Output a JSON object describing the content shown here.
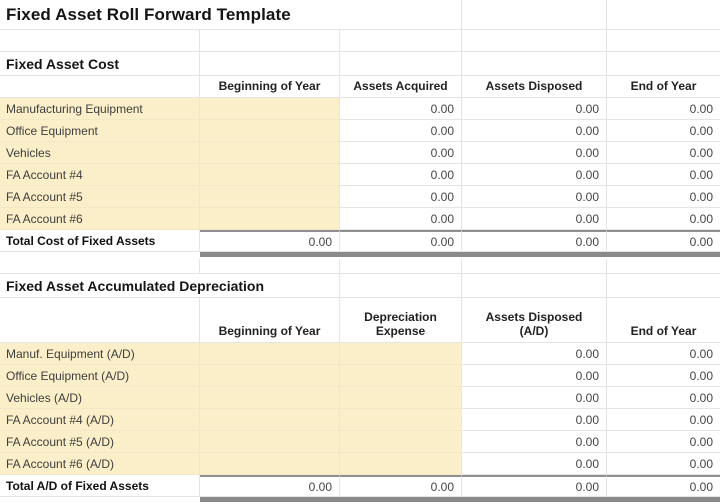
{
  "title": "Fixed Asset Roll Forward Template",
  "sections": [
    {
      "heading": "Fixed Asset Cost",
      "column_headers": [
        "Beginning of Year",
        "Assets Acquired",
        "Assets Disposed",
        "End of Year"
      ],
      "highlighted_value_columns": 1,
      "rows": [
        {
          "label": "Manufacturing Equipment",
          "values": [
            "",
            "0.00",
            "0.00",
            "0.00"
          ]
        },
        {
          "label": "Office Equipment",
          "values": [
            "",
            "0.00",
            "0.00",
            "0.00"
          ]
        },
        {
          "label": "Vehicles",
          "values": [
            "",
            "0.00",
            "0.00",
            "0.00"
          ]
        },
        {
          "label": "FA Account #4",
          "values": [
            "",
            "0.00",
            "0.00",
            "0.00"
          ]
        },
        {
          "label": "FA Account #5",
          "values": [
            "",
            "0.00",
            "0.00",
            "0.00"
          ]
        },
        {
          "label": "FA Account #6",
          "values": [
            "",
            "0.00",
            "0.00",
            "0.00"
          ]
        }
      ],
      "total_row": {
        "label": "Total Cost of Fixed Assets",
        "values": [
          "0.00",
          "0.00",
          "0.00",
          "0.00"
        ]
      }
    },
    {
      "heading": "Fixed Asset Accumulated Depreciation",
      "column_headers": [
        "Beginning of Year",
        "Depreciation\nExpense",
        "Assets Disposed\n(A/D)",
        "End of Year"
      ],
      "highlighted_value_columns": 2,
      "rows": [
        {
          "label": "Manuf. Equipment (A/D)",
          "values": [
            "",
            "",
            "0.00",
            "0.00"
          ]
        },
        {
          "label": "Office Equipment (A/D)",
          "values": [
            "",
            "",
            "0.00",
            "0.00"
          ]
        },
        {
          "label": "Vehicles (A/D)",
          "values": [
            "",
            "",
            "0.00",
            "0.00"
          ]
        },
        {
          "label": "FA Account #4 (A/D)",
          "values": [
            "",
            "",
            "0.00",
            "0.00"
          ]
        },
        {
          "label": "FA Account #5 (A/D)",
          "values": [
            "",
            "",
            "0.00",
            "0.00"
          ]
        },
        {
          "label": "FA Account #6 (A/D)",
          "values": [
            "",
            "",
            "0.00",
            "0.00"
          ]
        }
      ],
      "total_row": {
        "label": "Total A/D of Fixed Assets",
        "values": [
          "0.00",
          "0.00",
          "0.00",
          "0.00"
        ]
      }
    }
  ],
  "colors": {
    "input_highlight": "#FBEFC9",
    "total_underline": "#8A8A8A",
    "gridline": "#E4E4E4"
  }
}
